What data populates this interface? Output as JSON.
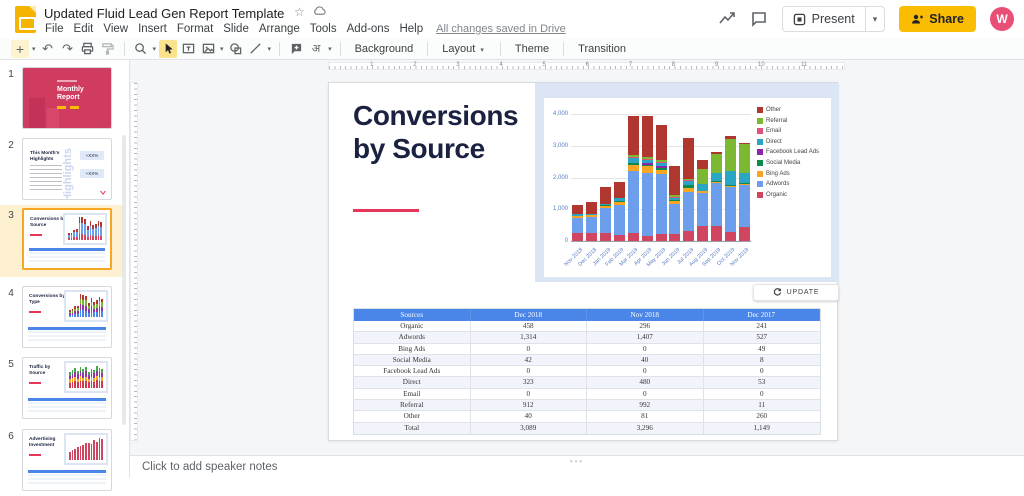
{
  "header": {
    "doc_title": "Updated Fluid Lead Gen Report Template",
    "menus": [
      "File",
      "Edit",
      "View",
      "Insert",
      "Format",
      "Slide",
      "Arrange",
      "Tools",
      "Add-ons",
      "Help"
    ],
    "saved_status": "All changes saved in Drive",
    "present_label": "Present",
    "share_label": "Share",
    "avatar_initial": "W"
  },
  "toolbar": {
    "background_label": "Background",
    "layout_label": "Layout",
    "theme_label": "Theme",
    "transition_label": "Transition",
    "input_tools_glyph": "अ"
  },
  "ruler": {
    "numbers": [
      "1",
      "2",
      "3",
      "4",
      "5",
      "6",
      "7",
      "8",
      "9",
      "10",
      "11"
    ]
  },
  "filmstrip": {
    "slides": [
      {
        "num": "1",
        "kind": "cover",
        "title": "Monthly Report"
      },
      {
        "num": "2",
        "kind": "highlights",
        "title": "This Month's Highlights",
        "watermark": "Highlights",
        "badges": [
          "+XX%",
          "+XX%"
        ]
      },
      {
        "num": "3",
        "kind": "chart",
        "title": "Conversions by Source",
        "selected": true,
        "mini": {
          "bars": [
            0.3,
            0.32,
            0.44,
            0.48,
            1,
            1,
            0.92,
            0.6,
            0.82,
            0.64,
            0.71,
            0.83,
            0.78
          ],
          "palette": [
            "#d0455f",
            "#6d9eeb",
            "#b0372f"
          ],
          "weights": [
            0.25,
            0.5,
            0.25
          ]
        }
      },
      {
        "num": "4",
        "kind": "chart",
        "title": "Conversions by Type",
        "mini": {
          "bars": [
            0.3,
            0.34,
            0.46,
            0.5,
            1,
            0.95,
            0.9,
            0.62,
            0.84,
            0.66,
            0.73,
            0.85,
            0.8
          ],
          "palette": [
            "#4a86e8",
            "#9334a8",
            "#7cb832",
            "#b0372f"
          ],
          "weights": [
            0.3,
            0.25,
            0.25,
            0.2
          ]
        }
      },
      {
        "num": "5",
        "kind": "chart",
        "title": "Traffic by Source",
        "mini": {
          "bars": [
            0.68,
            0.78,
            0.88,
            0.74,
            0.93,
            0.83,
            0.9,
            0.7,
            0.84,
            0.8,
            0.94,
            0.88,
            0.84
          ],
          "palette": [
            "#cf3a4f",
            "#f6a623",
            "#9334a8",
            "#48a54c"
          ],
          "weights": [
            0.35,
            0.2,
            0.25,
            0.2
          ]
        }
      },
      {
        "num": "6",
        "kind": "chart",
        "title": "Advertising Investment",
        "mini": {
          "bars": [
            0.35,
            0.42,
            0.5,
            0.55,
            0.62,
            0.66,
            0.72,
            0.76,
            0.7,
            0.86,
            0.8,
            0.96,
            0.9
          ],
          "palette": [
            "#d0455f"
          ],
          "weights": [
            1
          ]
        }
      }
    ]
  },
  "slide": {
    "title": "Conversions by Source",
    "update_label": "UPDATE",
    "accent_color": "#e8365a"
  },
  "chart_data": {
    "type": "bar",
    "stacked": true,
    "title": "",
    "categories": [
      "Nov 2018",
      "Dec 2018",
      "Jan 2019",
      "Feb 2019",
      "Mar 2019",
      "Apr 2019",
      "May 2019",
      "Jun 2019",
      "Jul 2019",
      "Aug 2019",
      "Sep 2019",
      "Oct 2019",
      "Nov 2019"
    ],
    "series": [
      {
        "name": "Organic",
        "color": "#d0455f",
        "values": [
          250,
          260,
          240,
          200,
          260,
          170,
          220,
          210,
          320,
          480,
          470,
          280,
          430
        ]
      },
      {
        "name": "Adwords",
        "color": "#6d9eeb",
        "values": [
          480,
          510,
          790,
          940,
          1940,
          1960,
          1890,
          960,
          1230,
          1040,
          1360,
          1420,
          1350
        ]
      },
      {
        "name": "Bing Ads",
        "color": "#f6a623",
        "values": [
          50,
          40,
          60,
          90,
          210,
          220,
          130,
          90,
          120,
          40,
          30,
          30,
          30
        ]
      },
      {
        "name": "Social Media",
        "color": "#0e8a4d",
        "values": [
          20,
          20,
          30,
          40,
          60,
          40,
          70,
          40,
          90,
          30,
          40,
          30,
          30
        ]
      },
      {
        "name": "Facebook Lead Ads",
        "color": "#8d24aa",
        "values": [
          0,
          0,
          0,
          0,
          0,
          60,
          60,
          0,
          0,
          0,
          0,
          0,
          0
        ]
      },
      {
        "name": "Direct",
        "color": "#2aa6c4",
        "values": [
          40,
          30,
          60,
          90,
          150,
          110,
          90,
          60,
          130,
          220,
          240,
          460,
          290
        ]
      },
      {
        "name": "Email",
        "color": "#e0527c",
        "values": [
          0,
          0,
          0,
          0,
          20,
          20,
          20,
          20,
          20,
          0,
          0,
          0,
          0
        ]
      },
      {
        "name": "Referral",
        "color": "#7cb832",
        "values": [
          0,
          0,
          0,
          0,
          60,
          70,
          80,
          70,
          60,
          450,
          600,
          1010,
          920
        ]
      },
      {
        "name": "Other",
        "color": "#b0372f",
        "values": [
          310,
          370,
          520,
          490,
          1250,
          1300,
          1090,
          900,
          1280,
          290,
          60,
          70,
          50
        ]
      }
    ],
    "ylim": [
      0,
      4000
    ],
    "yticks": [
      0,
      1000,
      2000,
      3000,
      4000
    ],
    "ytick_labels": [
      "0",
      "1,000",
      "2,000",
      "3,000",
      "4,000"
    ],
    "xlabel": "",
    "ylabel": "",
    "grid": true,
    "legend_position": "right"
  },
  "table": {
    "headers": [
      "Sources",
      "Dec 2018",
      "Nov 2018",
      "Dec 2017"
    ],
    "rows": [
      [
        "Organic",
        "458",
        "296",
        "241"
      ],
      [
        "Adwords",
        "1,314",
        "1,407",
        "527"
      ],
      [
        "Bing Ads",
        "0",
        "0",
        "49"
      ],
      [
        "Social Media",
        "42",
        "40",
        "8"
      ],
      [
        "Facebook Lead Ads",
        "0",
        "0",
        "0"
      ],
      [
        "Direct",
        "323",
        "480",
        "53"
      ],
      [
        "Email",
        "0",
        "0",
        "0"
      ],
      [
        "Referral",
        "912",
        "992",
        "11"
      ],
      [
        "Other",
        "40",
        "81",
        "260"
      ],
      [
        "Total",
        "3,089",
        "3,296",
        "1,149"
      ]
    ]
  },
  "notes": {
    "placeholder": "Click to add speaker notes"
  }
}
